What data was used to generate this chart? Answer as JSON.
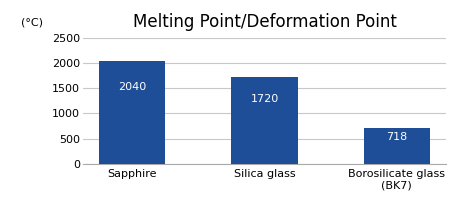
{
  "title": "Melting Point/Deformation Point",
  "ylabel": "(°C)",
  "categories": [
    "Sapphire",
    "Silica glass",
    "Borosilicate glass\n(BK7)"
  ],
  "values": [
    2040,
    1720,
    718
  ],
  "bar_color": "#1f4e99",
  "bar_labels": [
    "2040",
    "1720",
    "718"
  ],
  "bar_label_color": "#ffffff",
  "bar_label_fontsize": 8,
  "ylim": [
    0,
    2500
  ],
  "yticks": [
    0,
    500,
    1000,
    1500,
    2000,
    2500
  ],
  "title_fontsize": 12,
  "tick_fontsize": 8,
  "background_color": "#ffffff",
  "grid_color": "#c8c8c8"
}
